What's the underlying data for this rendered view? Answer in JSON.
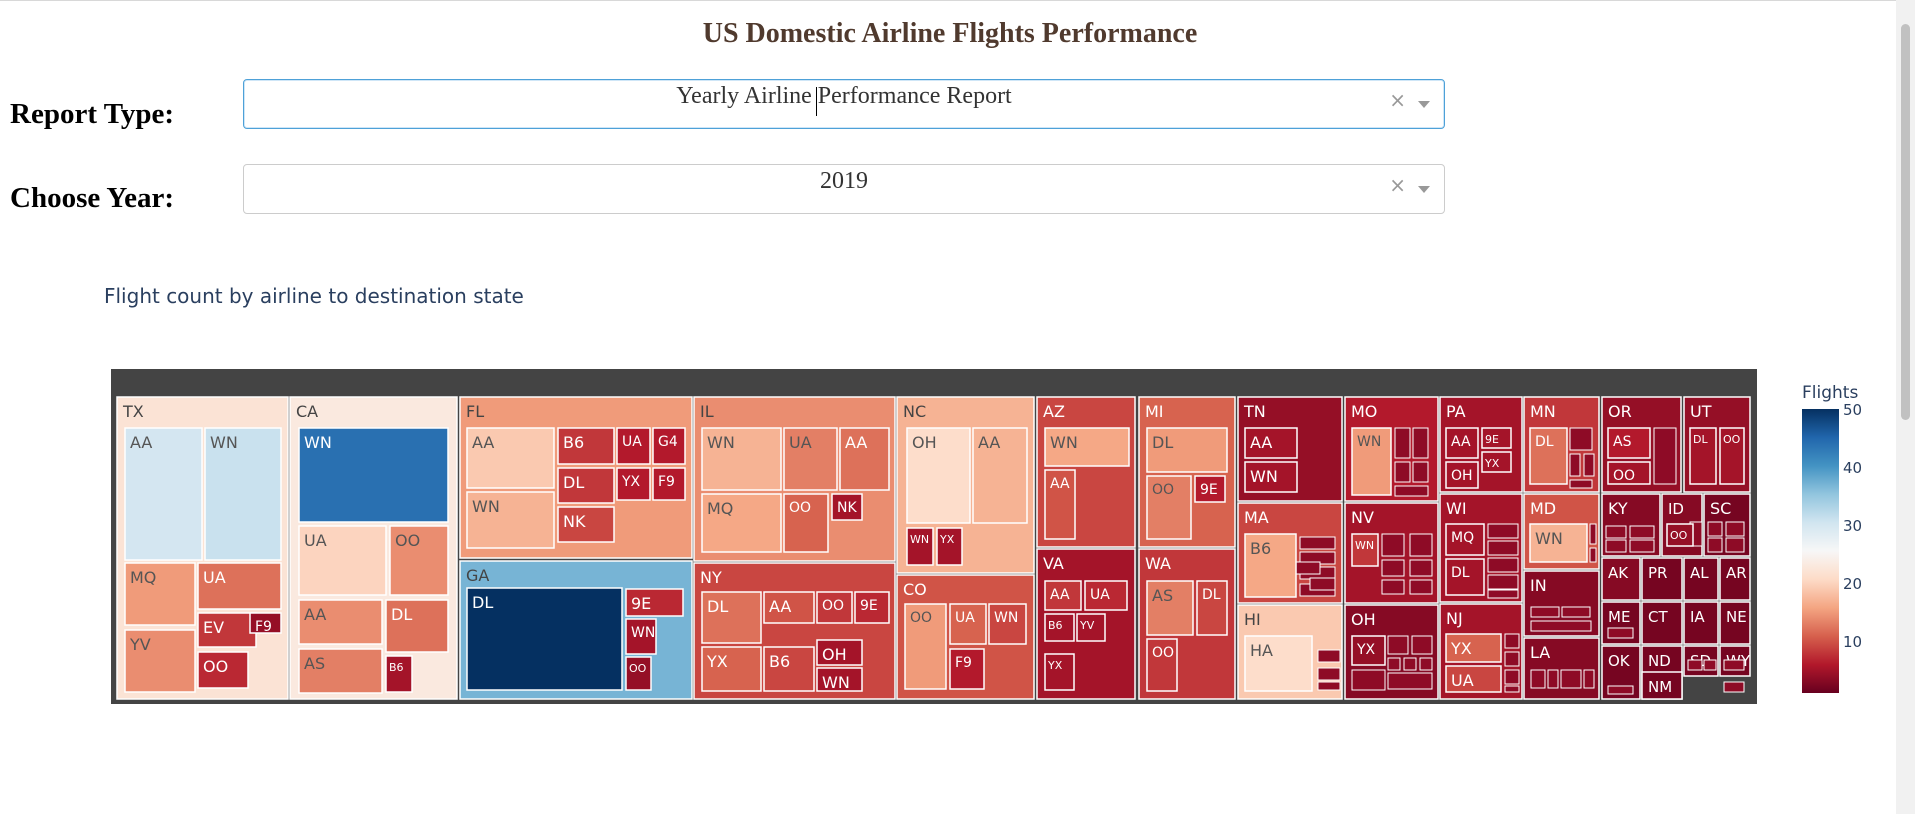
{
  "page_title": "US Domestic Airline Flights Performance",
  "report_type": {
    "label": "Report Type:",
    "value": "Yearly Airline Performance Report",
    "clear": "×"
  },
  "year": {
    "label": "Choose Year:",
    "value": "2019",
    "clear": "×"
  },
  "chart_data": {
    "type": "treemap",
    "title": "Flight count by airline to destination state",
    "colorbar": {
      "title": "Flights",
      "ticks": [
        10,
        20,
        30,
        40,
        50
      ],
      "range": [
        1,
        50
      ],
      "colorscale": "RdBu"
    },
    "states": [
      {
        "name": "TX",
        "airlines": [
          [
            "AA",
            30
          ],
          [
            "WN",
            31
          ],
          [
            "MQ",
            15
          ],
          [
            "UA",
            12
          ],
          [
            "YV",
            14
          ],
          [
            "EV",
            8
          ],
          [
            "OO",
            7
          ],
          [
            "F9",
            4
          ]
        ]
      },
      {
        "name": "CA",
        "airlines": [
          [
            "WN",
            44
          ],
          [
            "UA",
            20
          ],
          [
            "OO",
            14
          ],
          [
            "AA",
            14
          ],
          [
            "DL",
            12
          ],
          [
            "AS",
            13
          ],
          [
            "B6",
            5
          ]
        ]
      },
      {
        "name": "FL",
        "airlines": [
          [
            "AA",
            19
          ],
          [
            "WN",
            17
          ],
          [
            "B6",
            8
          ],
          [
            "DL",
            8
          ],
          [
            "NK",
            9
          ],
          [
            "UA",
            6
          ],
          [
            "G4",
            6
          ],
          [
            "YX",
            6
          ],
          [
            "F9",
            6
          ]
        ]
      },
      {
        "name": "GA",
        "airlines": [
          [
            "DL",
            50
          ],
          [
            "9E",
            7
          ],
          [
            "WN",
            5
          ],
          [
            "OO",
            4
          ]
        ]
      },
      {
        "name": "IL",
        "airlines": [
          [
            "WN",
            17
          ],
          [
            "UA",
            13
          ],
          [
            "AA",
            12
          ],
          [
            "MQ",
            16
          ],
          [
            "OO",
            11
          ],
          [
            "NK",
            5
          ]
        ]
      },
      {
        "name": "NY",
        "airlines": [
          [
            "DL",
            12
          ],
          [
            "AA",
            10
          ],
          [
            "OO",
            8
          ],
          [
            "9E",
            7
          ],
          [
            "YX",
            11
          ],
          [
            "B6",
            9
          ],
          [
            "OH",
            5
          ],
          [
            "WN",
            5
          ]
        ]
      },
      {
        "name": "NC",
        "airlines": [
          [
            "OH",
            21
          ],
          [
            "AA",
            17
          ],
          [
            "WN",
            5
          ],
          [
            "YX",
            5
          ]
        ]
      },
      {
        "name": "CO",
        "airlines": [
          [
            "OO",
            15
          ],
          [
            "UA",
            11
          ],
          [
            "WN",
            9
          ],
          [
            "F9",
            6
          ]
        ]
      },
      {
        "name": "AZ",
        "airlines": [
          [
            "WN",
            16
          ],
          [
            "AA",
            10
          ]
        ]
      },
      {
        "name": "VA",
        "airlines": [
          [
            "AA",
            8
          ],
          [
            "UA",
            7
          ],
          [
            "B6",
            5
          ],
          [
            "YV",
            5
          ],
          [
            "YX",
            5
          ]
        ]
      },
      {
        "name": "MI",
        "airlines": [
          [
            "DL",
            15
          ],
          [
            "OO",
            13
          ],
          [
            "9E",
            6
          ]
        ]
      },
      {
        "name": "WA",
        "airlines": [
          [
            "AS",
            13
          ],
          [
            "DL",
            9
          ],
          [
            "OO",
            8
          ]
        ]
      },
      {
        "name": "TN",
        "airlines": [
          [
            "AA",
            5
          ],
          [
            "WN",
            5
          ]
        ]
      },
      {
        "name": "MA",
        "airlines": [
          [
            "B6",
            16
          ]
        ]
      },
      {
        "name": "HI",
        "airlines": [
          [
            "HA",
            21
          ]
        ]
      },
      {
        "name": "MO",
        "airlines": [
          [
            "WN",
            15
          ]
        ]
      },
      {
        "name": "NV",
        "airlines": [
          [
            "WN",
            8
          ]
        ]
      },
      {
        "name": "OH",
        "airlines": [
          [
            "YX",
            4
          ]
        ]
      },
      {
        "name": "PA",
        "airlines": [
          [
            "AA",
            5
          ],
          [
            "9E",
            5
          ],
          [
            "OH",
            5
          ],
          [
            "YX",
            5
          ]
        ]
      },
      {
        "name": "WI",
        "airlines": [
          [
            "MQ",
            5
          ],
          [
            "DL",
            5
          ]
        ]
      },
      {
        "name": "NJ",
        "airlines": [
          [
            "YX",
            11
          ],
          [
            "UA",
            9
          ]
        ]
      },
      {
        "name": "MN",
        "airlines": [
          [
            "DL",
            12
          ]
        ]
      },
      {
        "name": "MD",
        "airlines": [
          [
            "WN",
            17
          ]
        ]
      },
      {
        "name": "IN",
        "airlines": []
      },
      {
        "name": "LA",
        "airlines": []
      },
      {
        "name": "OR",
        "airlines": [
          [
            "AS",
            6
          ],
          [
            "OO",
            5
          ]
        ]
      },
      {
        "name": "UT",
        "airlines": [
          [
            "DL",
            5
          ],
          [
            "OO",
            5
          ]
        ]
      },
      {
        "name": "KY",
        "airlines": []
      },
      {
        "name": "ID",
        "airlines": [
          [
            "OO",
            4
          ]
        ]
      },
      {
        "name": "SC",
        "airlines": []
      },
      {
        "name": "AK",
        "airlines": []
      },
      {
        "name": "PR",
        "airlines": []
      },
      {
        "name": "AL",
        "airlines": []
      },
      {
        "name": "AR",
        "airlines": []
      },
      {
        "name": "ME",
        "airlines": []
      },
      {
        "name": "CT",
        "airlines": []
      },
      {
        "name": "IA",
        "airlines": []
      },
      {
        "name": "NE",
        "airlines": []
      },
      {
        "name": "OK",
        "airlines": []
      },
      {
        "name": "ND",
        "airlines": []
      },
      {
        "name": "SD",
        "airlines": []
      },
      {
        "name": "WY",
        "airlines": []
      },
      {
        "name": "NM",
        "airlines": []
      }
    ]
  }
}
